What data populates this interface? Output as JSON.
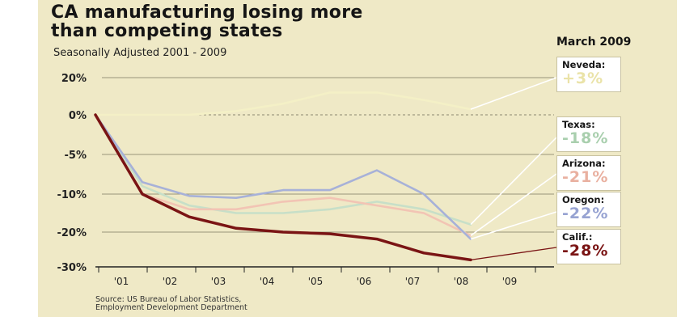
{
  "chart_data": {
    "type": "line",
    "title_line1": "CA manufacturing losing more",
    "title_line2": "than competing states",
    "subtitle": "Seasonally Adjusted 2001 - 2009",
    "date_label": "March 2009",
    "source_line1": "Source: US Bureau of Labor Statistics,",
    "source_line2": "Employment Development Department",
    "y_tick_labels": [
      "20%",
      "0%",
      "-5%",
      "-10%",
      "-20%",
      "-30%"
    ],
    "x_tick_labels": [
      "'01",
      "'02",
      "'03",
      "'04",
      "'05",
      "'06",
      "'07",
      "'08",
      "'09"
    ],
    "y_tick_values": [
      20,
      0,
      -5,
      -10,
      -20,
      -30
    ],
    "x": [
      2001,
      2002,
      2003,
      2004,
      2005,
      2006,
      2007,
      2008,
      2009
    ],
    "grid": true,
    "series": [
      {
        "name": "Neveda:",
        "label": "+3%",
        "color": "#f4f0c6",
        "values": [
          0,
          0,
          0,
          2,
          6,
          12,
          12,
          8,
          3
        ]
      },
      {
        "name": "Texas:",
        "label": "-18%",
        "color": "#c7dfc8",
        "values": [
          0,
          -9,
          -13,
          -15,
          -15,
          -14,
          -12,
          -14,
          -18
        ]
      },
      {
        "name": "Arizona:",
        "label": "-21%",
        "color": "#f2c4b4",
        "values": [
          0,
          -10,
          -14,
          -14,
          -12,
          -11,
          -13,
          -15,
          -21
        ]
      },
      {
        "name": "Oregon:",
        "label": "-22%",
        "color": "#a7b1d8",
        "values": [
          0,
          -8.5,
          -10.5,
          -11,
          -9.5,
          -9.5,
          -7,
          -10,
          -22
        ]
      },
      {
        "name": "Calif.:",
        "label": "-28%",
        "color": "#7a1414",
        "values": [
          0,
          -10,
          -16,
          -19,
          -20,
          -20.5,
          -22,
          -26,
          -28
        ]
      }
    ]
  }
}
